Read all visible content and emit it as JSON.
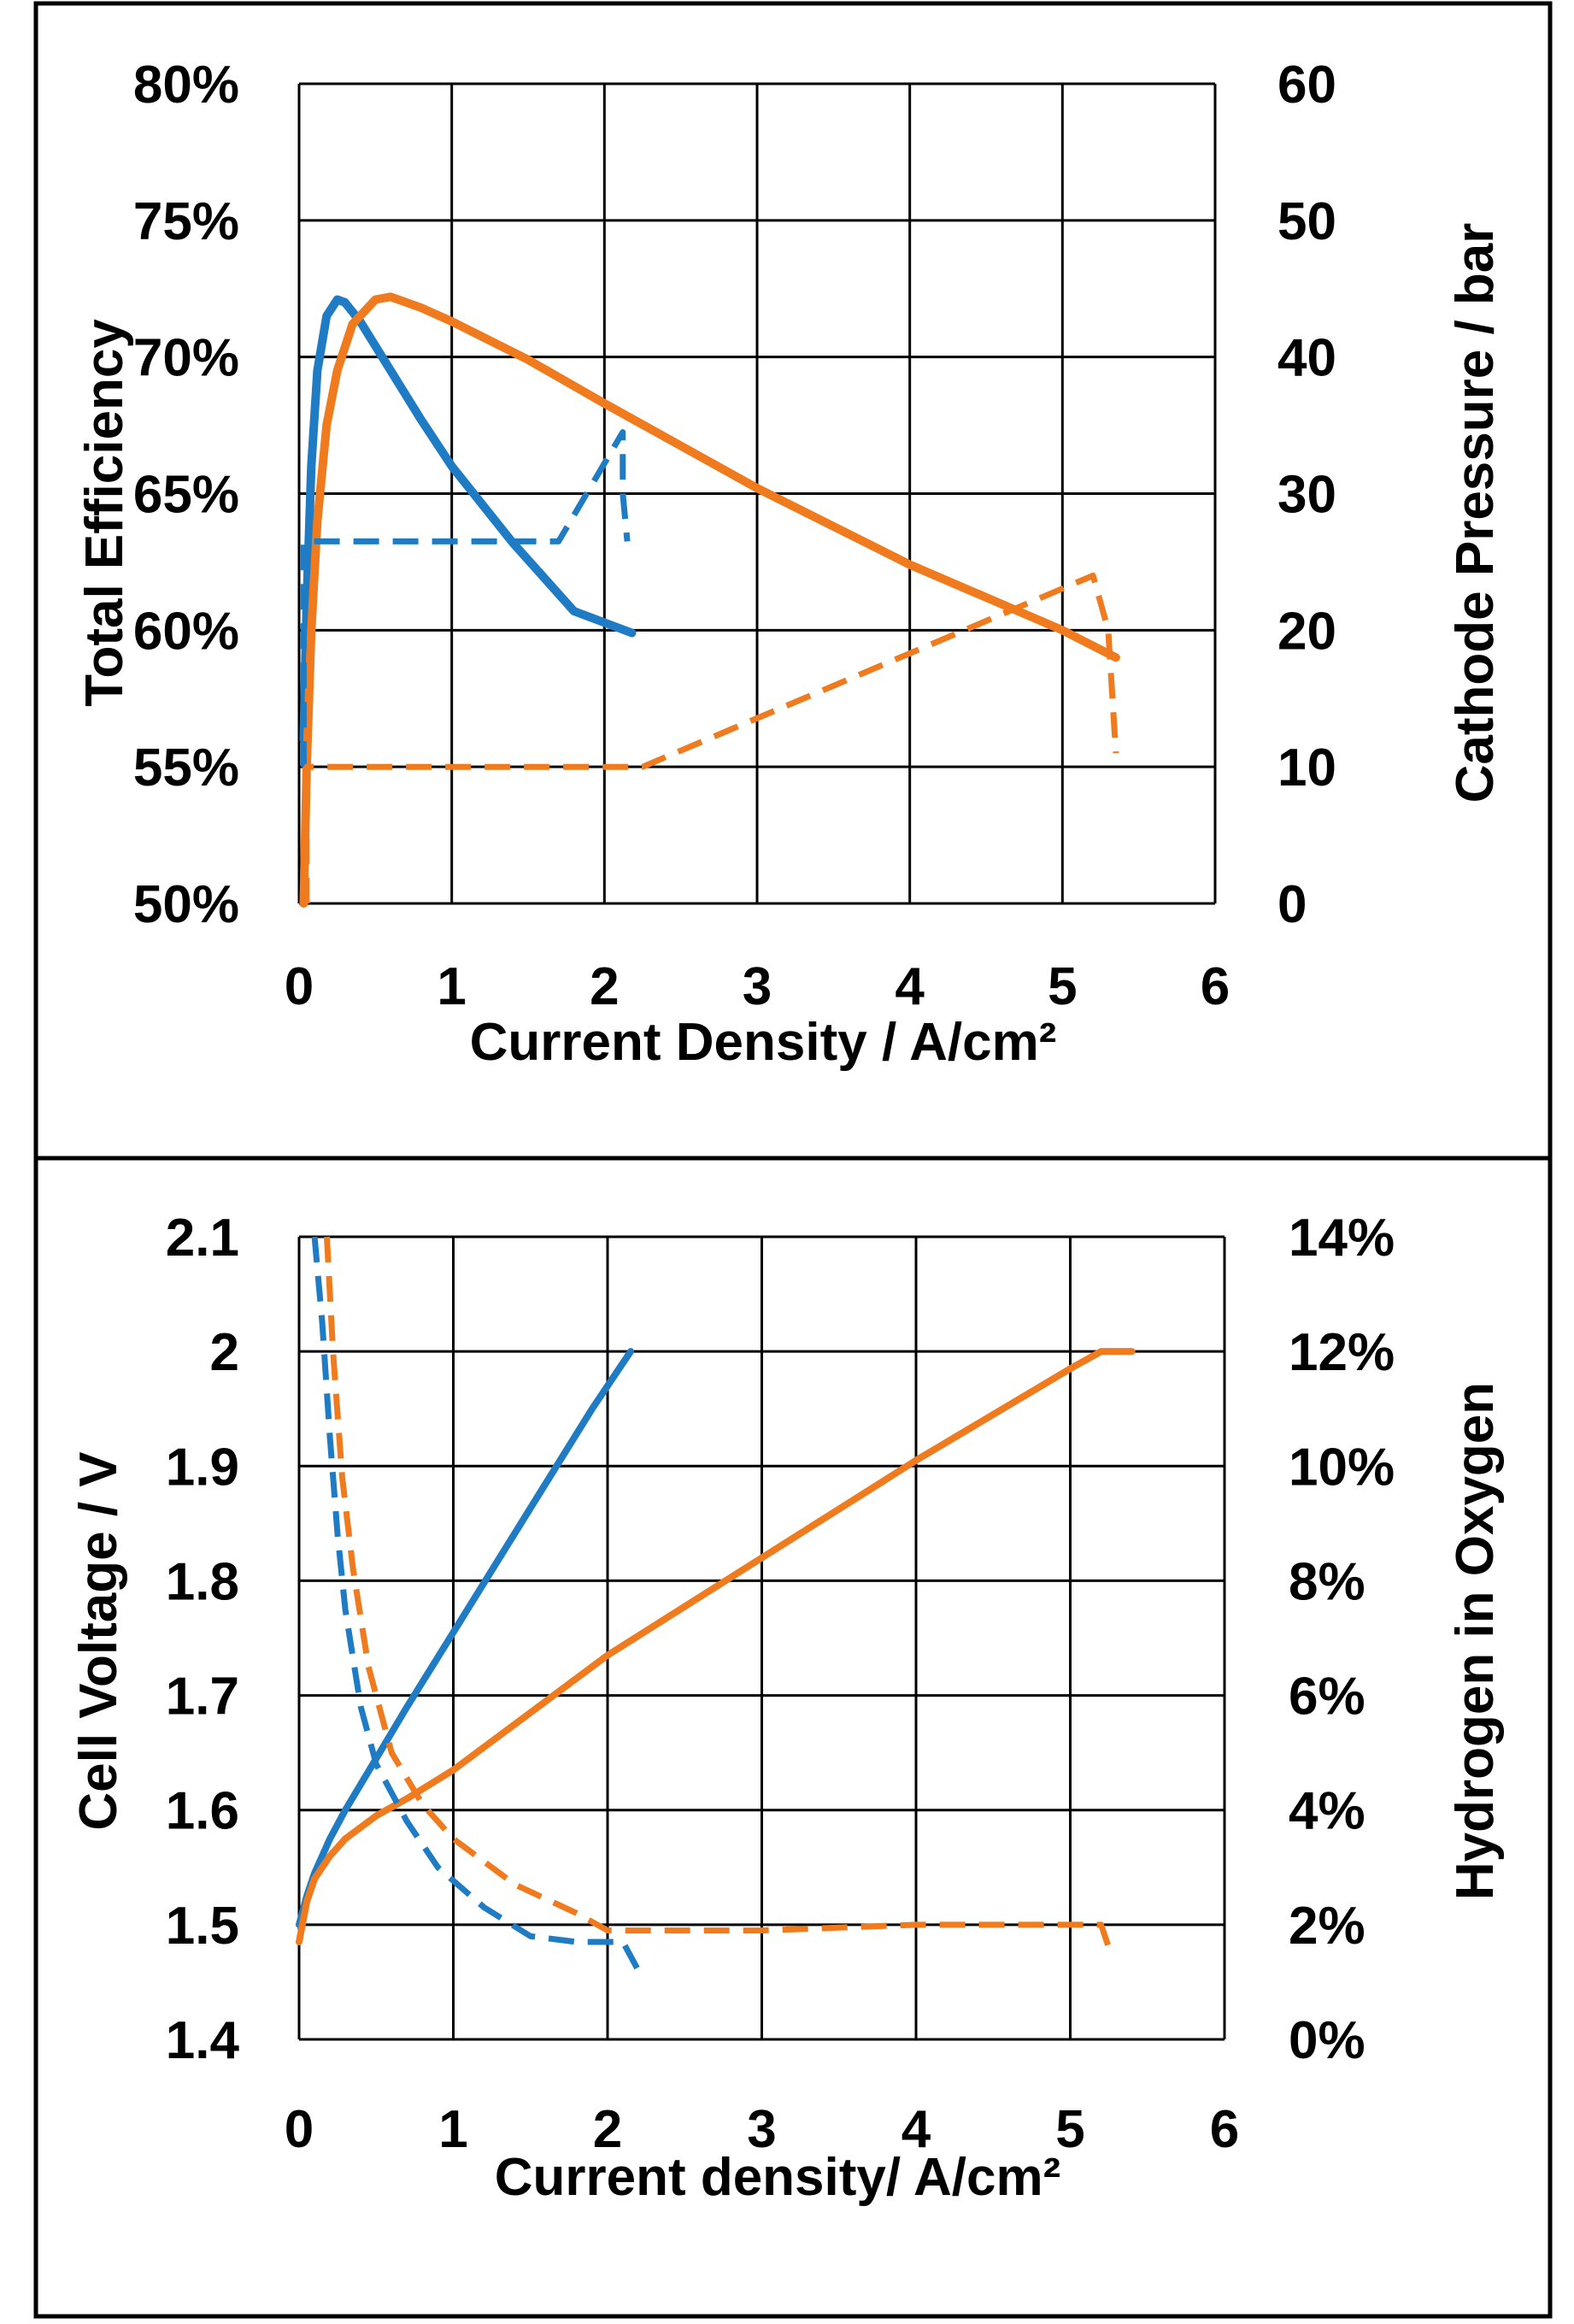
{
  "colors": {
    "blue": "#1f7cc4",
    "orange": "#f07b1e",
    "grid": "#000000",
    "frame": "#000000"
  },
  "chart_data": [
    {
      "type": "line",
      "xlabel": "Current Density / A/cm²",
      "ylabel": "Total Efficiency",
      "y2label": "Cathode Pressure / bar",
      "xlim": [
        0,
        6
      ],
      "ylim": [
        50,
        80
      ],
      "y2lim": [
        0,
        60
      ],
      "x_ticks": [
        "0",
        "1",
        "2",
        "3",
        "4",
        "5",
        "6"
      ],
      "y_ticks": [
        "50%",
        "55%",
        "60%",
        "65%",
        "70%",
        "75%",
        "80%"
      ],
      "y2_ticks": [
        "0",
        "10",
        "20",
        "30",
        "40",
        "50",
        "60"
      ],
      "series": [
        {
          "name": "blue efficiency",
          "axis": "left",
          "color": "blue",
          "style": "solid",
          "x": [
            0.03,
            0.05,
            0.08,
            0.12,
            0.18,
            0.25,
            0.3,
            0.4,
            0.6,
            0.8,
            1.0,
            1.4,
            1.8,
            2.18
          ],
          "y": [
            56.0,
            61.0,
            66.0,
            69.5,
            71.5,
            72.1,
            72.0,
            71.3,
            69.5,
            67.7,
            66.0,
            63.2,
            60.7,
            59.9
          ]
        },
        {
          "name": "orange efficiency",
          "axis": "left",
          "color": "orange",
          "style": "solid",
          "x": [
            0.03,
            0.05,
            0.08,
            0.12,
            0.18,
            0.25,
            0.35,
            0.5,
            0.6,
            0.8,
            1.0,
            1.5,
            2.0,
            3.0,
            4.0,
            5.0,
            5.35
          ],
          "y": [
            50.0,
            55.0,
            60.0,
            64.0,
            67.5,
            69.5,
            71.2,
            72.1,
            72.2,
            71.8,
            71.3,
            69.9,
            68.3,
            65.2,
            62.4,
            60.0,
            59.0
          ]
        },
        {
          "name": "blue cathode pressure",
          "axis": "right",
          "color": "blue",
          "style": "dashed",
          "x": [
            0.03,
            0.03,
            1.7,
            2.12,
            2.12,
            2.15
          ],
          "y": [
            10,
            26.5,
            26.5,
            34.5,
            30,
            26.5
          ]
        },
        {
          "name": "orange cathode pressure",
          "axis": "right",
          "color": "orange",
          "style": "dashed",
          "x": [
            0.05,
            0.05,
            2.25,
            5.2,
            5.3,
            5.35
          ],
          "y": [
            0,
            10,
            10,
            24,
            20,
            11
          ]
        }
      ]
    },
    {
      "type": "line",
      "xlabel": "Current density/ A/cm²",
      "ylabel": "Cell Voltage / V",
      "y2label": "Hydrogen in Oxygen",
      "xlim": [
        0,
        6
      ],
      "ylim": [
        1.4,
        2.1
      ],
      "y2lim": [
        0,
        14
      ],
      "x_ticks": [
        "0",
        "1",
        "2",
        "3",
        "4",
        "5",
        "6"
      ],
      "y_ticks": [
        "1.4",
        "1.5",
        "1.6",
        "1.7",
        "1.8",
        "1.9",
        "2",
        "2.1"
      ],
      "y2_ticks": [
        "0%",
        "2%",
        "4%",
        "6%",
        "8%",
        "10%",
        "12%",
        "14%"
      ],
      "series": [
        {
          "name": "blue cell voltage",
          "axis": "left",
          "color": "blue",
          "style": "solid",
          "x": [
            0.0,
            0.05,
            0.1,
            0.2,
            0.3,
            0.5,
            0.7,
            1.0,
            1.3,
            1.6,
            1.9,
            2.15
          ],
          "y": [
            1.5,
            1.525,
            1.545,
            1.575,
            1.6,
            1.645,
            1.69,
            1.755,
            1.82,
            1.885,
            1.95,
            2.0
          ]
        },
        {
          "name": "orange cell voltage",
          "axis": "left",
          "color": "orange",
          "style": "solid",
          "x": [
            0.0,
            0.05,
            0.1,
            0.2,
            0.3,
            0.5,
            0.7,
            1.0,
            1.5,
            2.0,
            3.0,
            4.0,
            5.0,
            5.2,
            5.4
          ],
          "y": [
            1.485,
            1.52,
            1.54,
            1.56,
            1.575,
            1.595,
            1.61,
            1.635,
            1.685,
            1.735,
            1.82,
            1.905,
            1.985,
            2.0,
            2.0
          ]
        },
        {
          "name": "blue hydrogen in oxygen",
          "axis": "right",
          "color": "blue",
          "style": "dashed",
          "x": [
            0.1,
            0.15,
            0.2,
            0.25,
            0.3,
            0.4,
            0.5,
            0.7,
            0.9,
            1.2,
            1.5,
            1.8,
            2.1,
            2.2
          ],
          "y": [
            14.0,
            12.5,
            10.5,
            8.8,
            7.5,
            5.8,
            4.8,
            3.8,
            3.0,
            2.3,
            1.8,
            1.7,
            1.7,
            1.2
          ]
        },
        {
          "name": "orange hydrogen in oxygen",
          "axis": "right",
          "color": "orange",
          "style": "dashed",
          "x": [
            0.18,
            0.22,
            0.28,
            0.35,
            0.45,
            0.6,
            0.8,
            1.0,
            1.4,
            1.8,
            2.0,
            3.0,
            4.0,
            5.0,
            5.2,
            5.25
          ],
          "y": [
            14.0,
            12.0,
            9.8,
            8.2,
            6.5,
            5.0,
            4.1,
            3.5,
            2.7,
            2.2,
            1.9,
            1.9,
            2.0,
            2.0,
            2.0,
            1.6
          ]
        }
      ]
    }
  ]
}
